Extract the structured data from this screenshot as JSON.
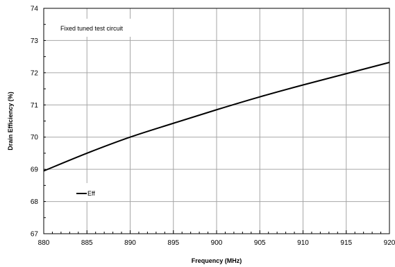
{
  "chart_data": {
    "type": "line",
    "title": "",
    "xlabel": "Frequency (MHz)",
    "ylabel": "Drain Efficiency (%)",
    "xlim": [
      880,
      920
    ],
    "ylim": [
      67,
      74
    ],
    "x_ticks": [
      880,
      885,
      890,
      895,
      900,
      905,
      910,
      915,
      920
    ],
    "y_ticks": [
      67,
      68,
      69,
      70,
      71,
      72,
      73,
      74
    ],
    "grid": true,
    "annotation": "Fixed tuned test circuit",
    "legend_position": "bottom-left",
    "series": [
      {
        "name": "Eff",
        "color": "#000000",
        "x": [
          880,
          885,
          890,
          895,
          900,
          905,
          910,
          915,
          920
        ],
        "y": [
          68.95,
          69.5,
          70.0,
          70.43,
          70.85,
          71.25,
          71.62,
          71.97,
          72.32
        ]
      }
    ]
  }
}
